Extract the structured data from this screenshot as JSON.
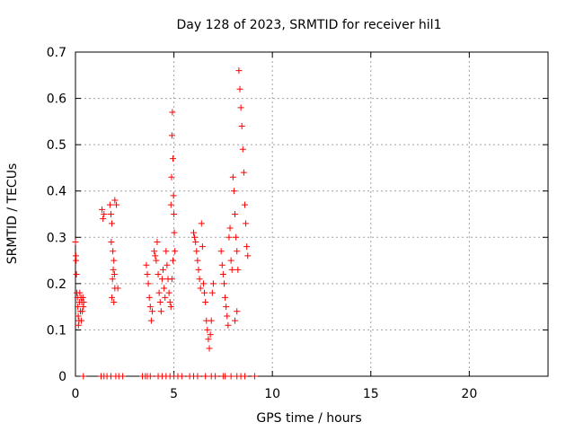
{
  "chart_data": {
    "type": "scatter",
    "title": "Day 128 of 2023, SRMTID for receiver hil1",
    "xlabel": "GPS time / hours",
    "ylabel": "SRMTID / TECUs",
    "xlim": [
      0,
      24
    ],
    "ylim": [
      0,
      0.7
    ],
    "xticks": [
      0,
      5,
      10,
      15,
      20
    ],
    "yticks": [
      0,
      0.1,
      0.2,
      0.3,
      0.4,
      0.5,
      0.6,
      0.7
    ],
    "xtick_labels": [
      "0",
      "5",
      "10",
      "15",
      "20"
    ],
    "ytick_labels": [
      "0",
      "0.1",
      "0.2",
      "0.3",
      "0.4",
      "0.5",
      "0.6",
      "0.7"
    ],
    "grid": true,
    "marker": "+",
    "color": "#ff0000",
    "series": [
      {
        "name": "SRMTID",
        "points": [
          [
            0.0,
            0.29
          ],
          [
            0.02,
            0.26
          ],
          [
            0.03,
            0.25
          ],
          [
            0.05,
            0.22
          ],
          [
            0.07,
            0.18
          ],
          [
            0.1,
            0.17
          ],
          [
            0.12,
            0.15
          ],
          [
            0.14,
            0.13
          ],
          [
            0.15,
            0.11
          ],
          [
            0.18,
            0.12
          ],
          [
            0.2,
            0.16
          ],
          [
            0.22,
            0.18
          ],
          [
            0.25,
            0.14
          ],
          [
            0.28,
            0.17
          ],
          [
            0.3,
            0.12
          ],
          [
            0.32,
            0.16
          ],
          [
            0.35,
            0.14
          ],
          [
            0.38,
            0.17
          ],
          [
            0.4,
            0.15
          ],
          [
            0.42,
            0.16
          ],
          [
            1.35,
            0.36
          ],
          [
            1.4,
            0.34
          ],
          [
            1.45,
            0.35
          ],
          [
            1.75,
            0.37
          ],
          [
            1.8,
            0.35
          ],
          [
            1.85,
            0.33
          ],
          [
            1.82,
            0.29
          ],
          [
            1.9,
            0.27
          ],
          [
            1.95,
            0.25
          ],
          [
            1.92,
            0.23
          ],
          [
            1.98,
            0.22
          ],
          [
            1.88,
            0.21
          ],
          [
            2.0,
            0.19
          ],
          [
            1.85,
            0.17
          ],
          [
            1.95,
            0.16
          ],
          [
            2.0,
            0.38
          ],
          [
            2.08,
            0.37
          ],
          [
            2.15,
            0.19
          ],
          [
            3.6,
            0.24
          ],
          [
            3.65,
            0.22
          ],
          [
            3.7,
            0.2
          ],
          [
            3.75,
            0.17
          ],
          [
            3.8,
            0.15
          ],
          [
            3.85,
            0.12
          ],
          [
            3.9,
            0.14
          ],
          [
            4.0,
            0.27
          ],
          [
            4.05,
            0.26
          ],
          [
            4.1,
            0.25
          ],
          [
            4.15,
            0.29
          ],
          [
            4.2,
            0.22
          ],
          [
            4.25,
            0.18
          ],
          [
            4.3,
            0.16
          ],
          [
            4.35,
            0.14
          ],
          [
            4.4,
            0.21
          ],
          [
            4.45,
            0.23
          ],
          [
            4.5,
            0.19
          ],
          [
            4.55,
            0.17
          ],
          [
            4.6,
            0.27
          ],
          [
            4.65,
            0.24
          ],
          [
            4.7,
            0.21
          ],
          [
            4.75,
            0.18
          ],
          [
            4.8,
            0.16
          ],
          [
            4.85,
            0.37
          ],
          [
            4.88,
            0.43
          ],
          [
            4.9,
            0.52
          ],
          [
            4.92,
            0.57
          ],
          [
            4.95,
            0.47
          ],
          [
            4.98,
            0.39
          ],
          [
            5.0,
            0.35
          ],
          [
            5.02,
            0.31
          ],
          [
            5.05,
            0.27
          ],
          [
            4.95,
            0.25
          ],
          [
            4.9,
            0.21
          ],
          [
            4.85,
            0.15
          ],
          [
            6.0,
            0.31
          ],
          [
            6.05,
            0.3
          ],
          [
            6.1,
            0.29
          ],
          [
            6.15,
            0.27
          ],
          [
            6.2,
            0.25
          ],
          [
            6.25,
            0.23
          ],
          [
            6.3,
            0.21
          ],
          [
            6.35,
            0.19
          ],
          [
            6.4,
            0.33
          ],
          [
            6.45,
            0.28
          ],
          [
            6.5,
            0.2
          ],
          [
            6.55,
            0.18
          ],
          [
            6.6,
            0.16
          ],
          [
            6.65,
            0.12
          ],
          [
            6.7,
            0.1
          ],
          [
            6.75,
            0.08
          ],
          [
            6.8,
            0.06
          ],
          [
            6.85,
            0.09
          ],
          [
            6.9,
            0.12
          ],
          [
            6.95,
            0.18
          ],
          [
            7.0,
            0.2
          ],
          [
            7.4,
            0.27
          ],
          [
            7.45,
            0.24
          ],
          [
            7.5,
            0.22
          ],
          [
            7.55,
            0.2
          ],
          [
            7.6,
            0.17
          ],
          [
            7.65,
            0.15
          ],
          [
            7.7,
            0.13
          ],
          [
            7.75,
            0.11
          ],
          [
            7.8,
            0.3
          ],
          [
            7.85,
            0.32
          ],
          [
            7.9,
            0.25
          ],
          [
            7.95,
            0.23
          ],
          [
            8.0,
            0.43
          ],
          [
            8.05,
            0.4
          ],
          [
            8.1,
            0.35
          ],
          [
            8.15,
            0.3
          ],
          [
            8.2,
            0.27
          ],
          [
            8.25,
            0.23
          ],
          [
            8.3,
            0.66
          ],
          [
            8.35,
            0.62
          ],
          [
            8.4,
            0.58
          ],
          [
            8.45,
            0.54
          ],
          [
            8.5,
            0.49
          ],
          [
            8.55,
            0.44
          ],
          [
            8.6,
            0.37
          ],
          [
            8.65,
            0.33
          ],
          [
            8.7,
            0.28
          ],
          [
            8.75,
            0.26
          ],
          [
            8.1,
            0.12
          ],
          [
            8.2,
            0.14
          ],
          [
            0.4,
            0
          ],
          [
            1.3,
            0
          ],
          [
            1.45,
            0
          ],
          [
            1.6,
            0
          ],
          [
            1.8,
            0
          ],
          [
            2.05,
            0
          ],
          [
            2.2,
            0
          ],
          [
            2.4,
            0
          ],
          [
            3.4,
            0
          ],
          [
            3.55,
            0
          ],
          [
            3.65,
            0
          ],
          [
            3.8,
            0
          ],
          [
            4.2,
            0
          ],
          [
            4.4,
            0
          ],
          [
            4.6,
            0
          ],
          [
            4.8,
            0
          ],
          [
            5.0,
            0
          ],
          [
            5.2,
            0
          ],
          [
            5.4,
            0
          ],
          [
            5.8,
            0
          ],
          [
            6.0,
            0
          ],
          [
            6.2,
            0
          ],
          [
            6.6,
            0
          ],
          [
            6.9,
            0
          ],
          [
            7.1,
            0
          ],
          [
            7.5,
            0
          ],
          [
            7.6,
            0
          ],
          [
            7.9,
            0
          ],
          [
            8.2,
            0
          ],
          [
            8.4,
            0
          ],
          [
            8.6,
            0
          ],
          [
            9.1,
            0
          ]
        ]
      }
    ]
  }
}
